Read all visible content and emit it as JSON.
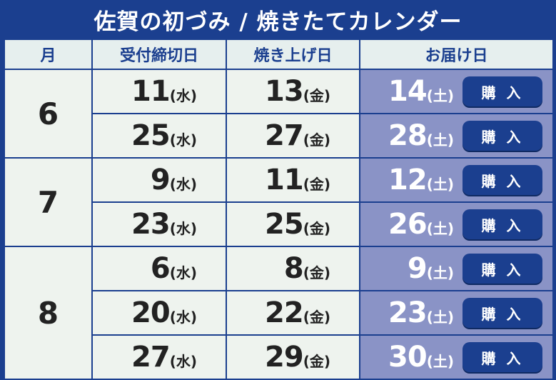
{
  "title": "佐賀の初づみ / 焼きたてカレンダー",
  "headers": {
    "month": "月",
    "deadline": "受付締切日",
    "bake": "焼き上げ日",
    "delivery": "お届け日"
  },
  "buy_label": "購 入",
  "dow": {
    "wed": "(水)",
    "fri": "(金)",
    "sat": "(土)"
  },
  "months": [
    {
      "month": "6",
      "rows": [
        {
          "deadline": "11",
          "bake": "13",
          "delivery": "14"
        },
        {
          "deadline": "25",
          "bake": "27",
          "delivery": "28"
        }
      ]
    },
    {
      "month": "7",
      "rows": [
        {
          "deadline": "9",
          "bake": "11",
          "delivery": "12"
        },
        {
          "deadline": "23",
          "bake": "25",
          "delivery": "26"
        }
      ]
    },
    {
      "month": "8",
      "rows": [
        {
          "deadline": "6",
          "bake": "8",
          "delivery": "9"
        },
        {
          "deadline": "20",
          "bake": "22",
          "delivery": "23"
        },
        {
          "deadline": "27",
          "bake": "29",
          "delivery": "30"
        }
      ]
    }
  ],
  "colors": {
    "navy": "#1b3f8f",
    "cell_bg": "#eef3ee",
    "delivery_bg": "#8a93c6"
  }
}
